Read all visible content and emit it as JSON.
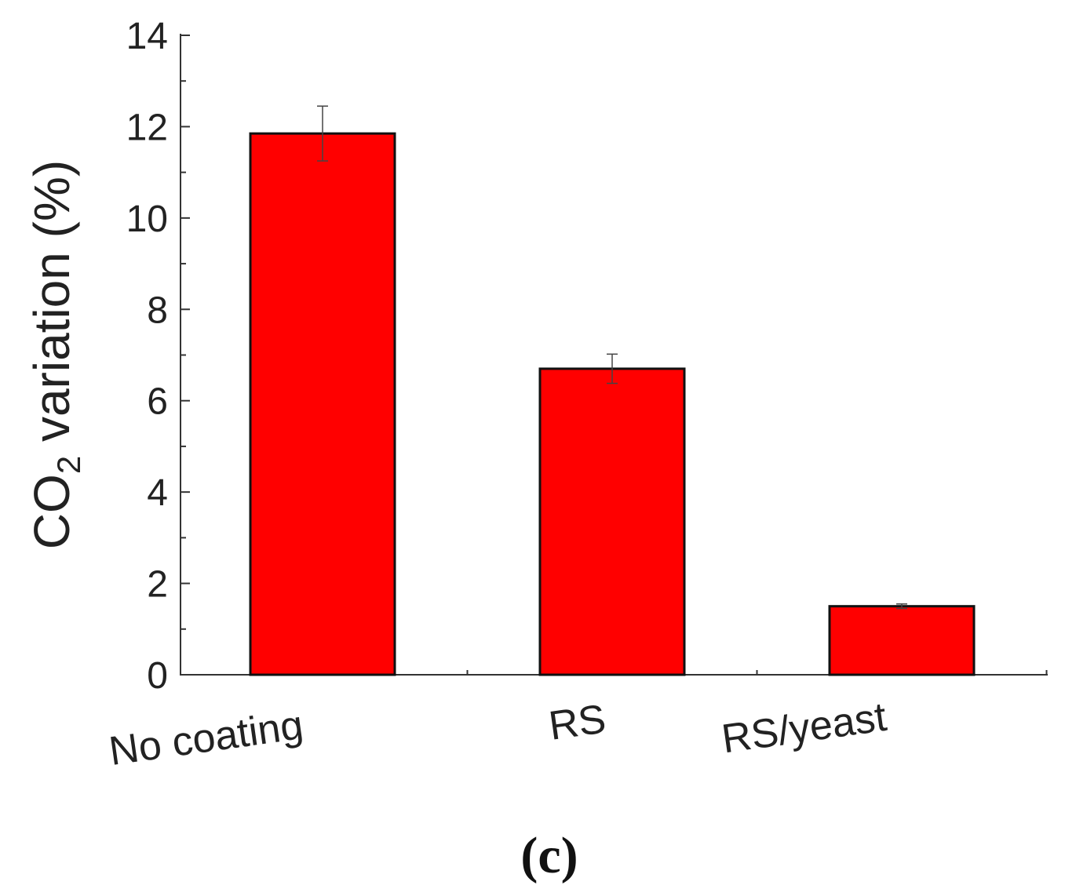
{
  "chart_data": {
    "type": "bar",
    "categories": [
      "No coating",
      "RS",
      "RS/yeast"
    ],
    "values": [
      11.85,
      6.7,
      1.5
    ],
    "errors": [
      0.6,
      0.32,
      0.05
    ],
    "ylabel_main": "CO",
    "ylabel_sub": "2",
    "ylabel_rest": " variation (%)",
    "ylim": [
      0,
      14
    ],
    "yticks": [
      "0",
      "2",
      "4",
      "6",
      "8",
      "10",
      "12",
      "14"
    ],
    "bar_color": "#ff0000",
    "grid": false,
    "panel_label": "(c)"
  }
}
